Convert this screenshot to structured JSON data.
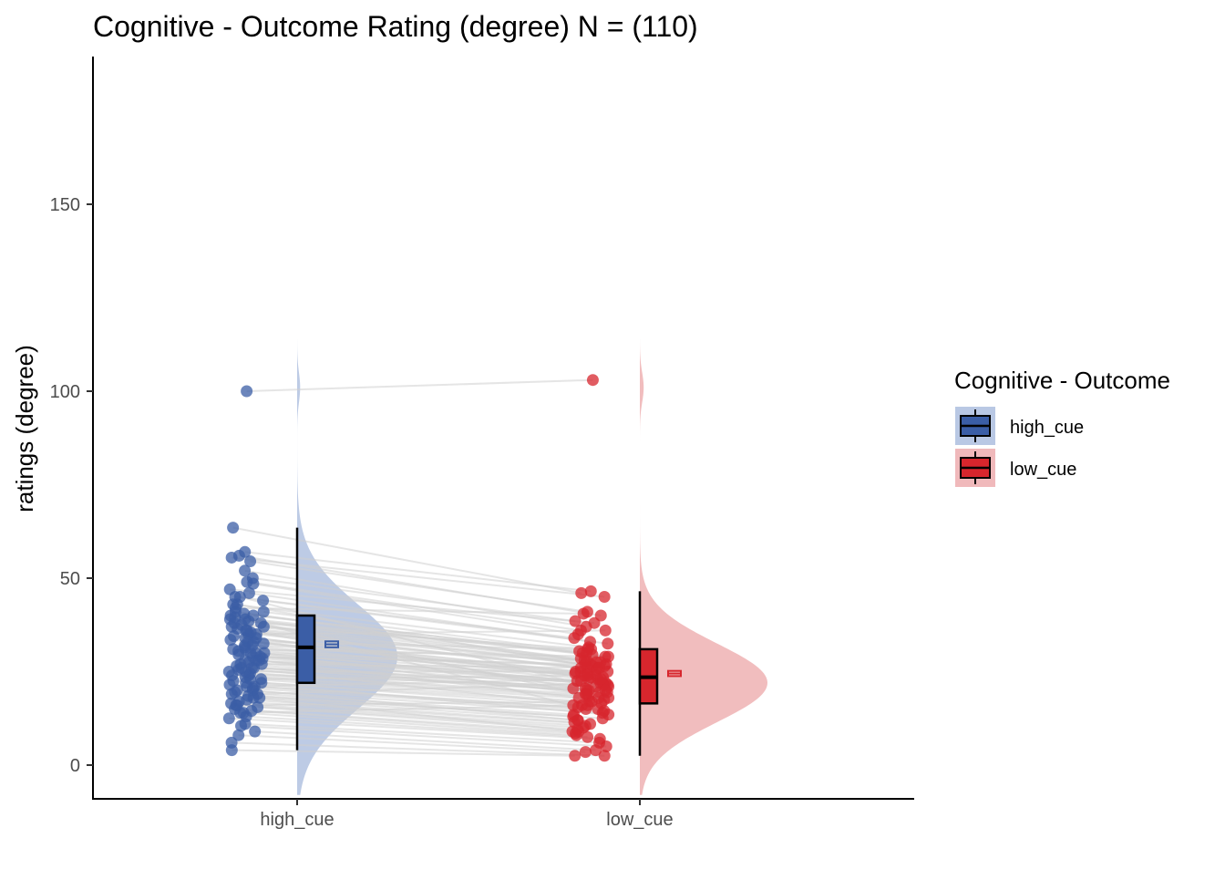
{
  "chart_data": {
    "type": "raincloud",
    "title": "Cognitive - Outcome Rating (degree) N = (110)",
    "xlabel": "",
    "ylabel": "ratings (degree)",
    "categories": [
      "high_cue",
      "low_cue"
    ],
    "ylim": [
      -8,
      185
    ],
    "yticks": [
      0,
      50,
      100,
      150
    ],
    "ytick_labels": [
      "0",
      "50",
      "100",
      "150"
    ],
    "grid": false,
    "legend": {
      "title": "Cognitive - Outcome",
      "position": "right",
      "entries": [
        "high_cue",
        "low_cue"
      ]
    },
    "colors": {
      "high_cue": "#3b5ea6",
      "low_cue": "#d7262d",
      "high_cue_fill": "#b9c8e4",
      "low_cue_fill": "#f0b9bb",
      "pair_line": "#cfcfcf"
    },
    "series": [
      {
        "name": "high_cue",
        "box": {
          "min": 4,
          "q1": 22,
          "median": 31.5,
          "q3": 40,
          "max": 63.5
        },
        "mean": 32.3,
        "mean_se": [
          31.5,
          33.1
        ],
        "density_peak": 29,
        "density_range": [
          -8,
          114
        ]
      },
      {
        "name": "low_cue",
        "box": {
          "min": 2.5,
          "q1": 16.5,
          "median": 23.5,
          "q3": 31,
          "max": 46.5
        },
        "mean": 24.5,
        "mean_se": [
          23.8,
          25.2
        ],
        "density_peak": 22,
        "density_range": [
          -8,
          114
        ]
      }
    ],
    "pairs": [
      [
        100.0,
        103.0
      ],
      [
        63.5,
        46.0
      ],
      [
        57.0,
        46.5
      ],
      [
        55.5,
        45.0
      ],
      [
        54.5,
        41.0
      ],
      [
        56.0,
        40.0
      ],
      [
        50.0,
        38.5
      ],
      [
        49.0,
        36.0
      ],
      [
        48.5,
        35.0
      ],
      [
        46.0,
        33.0
      ],
      [
        45.0,
        34.0
      ],
      [
        44.0,
        32.5
      ],
      [
        43.0,
        31.5
      ],
      [
        41.0,
        30.5
      ],
      [
        40.5,
        29.5
      ],
      [
        40.0,
        30.0
      ],
      [
        39.5,
        29.0
      ],
      [
        39.0,
        28.5
      ],
      [
        38.5,
        28.0
      ],
      [
        38.0,
        27.5
      ],
      [
        37.5,
        27.0
      ],
      [
        37.0,
        27.0
      ],
      [
        36.5,
        26.5
      ],
      [
        36.0,
        26.0
      ],
      [
        35.5,
        26.0
      ],
      [
        35.0,
        25.5
      ],
      [
        34.5,
        25.0
      ],
      [
        34.0,
        25.0
      ],
      [
        33.5,
        24.5
      ],
      [
        33.0,
        24.0
      ],
      [
        32.5,
        24.0
      ],
      [
        32.0,
        23.5
      ],
      [
        31.5,
        23.5
      ],
      [
        31.0,
        23.0
      ],
      [
        30.5,
        22.5
      ],
      [
        30.0,
        22.5
      ],
      [
        29.5,
        22.0
      ],
      [
        29.0,
        21.5
      ],
      [
        28.5,
        21.5
      ],
      [
        28.0,
        21.0
      ],
      [
        27.5,
        20.5
      ],
      [
        27.0,
        20.5
      ],
      [
        26.5,
        20.0
      ],
      [
        26.0,
        19.5
      ],
      [
        25.5,
        19.5
      ],
      [
        25.0,
        19.0
      ],
      [
        24.5,
        18.5
      ],
      [
        24.0,
        18.0
      ],
      [
        23.5,
        17.5
      ],
      [
        23.0,
        17.0
      ],
      [
        22.5,
        16.5
      ],
      [
        22.0,
        16.0
      ],
      [
        21.5,
        15.5
      ],
      [
        21.0,
        15.0
      ],
      [
        20.5,
        14.5
      ],
      [
        20.0,
        14.0
      ],
      [
        19.5,
        13.5
      ],
      [
        19.0,
        13.0
      ],
      [
        18.5,
        12.5
      ],
      [
        18.0,
        12.0
      ],
      [
        17.5,
        11.5
      ],
      [
        17.0,
        11.0
      ],
      [
        16.5,
        10.5
      ],
      [
        16.0,
        10.0
      ],
      [
        15.5,
        9.5
      ],
      [
        15.0,
        9.0
      ],
      [
        14.5,
        8.5
      ],
      [
        14.0,
        8.0
      ],
      [
        13.0,
        7.5
      ],
      [
        12.5,
        7.0
      ],
      [
        11.0,
        6.0
      ],
      [
        10.5,
        5.0
      ],
      [
        9.0,
        4.0
      ],
      [
        8.0,
        3.5
      ],
      [
        6.0,
        2.5
      ],
      [
        4.0,
        2.5
      ],
      [
        42.0,
        40.5
      ],
      [
        47.0,
        38.0
      ],
      [
        52.0,
        37.0
      ],
      [
        35.0,
        36.0
      ],
      [
        33.0,
        31.0
      ],
      [
        31.0,
        29.0
      ],
      [
        29.0,
        27.0
      ],
      [
        27.0,
        26.0
      ],
      [
        25.0,
        25.0
      ],
      [
        23.0,
        24.0
      ],
      [
        21.0,
        23.0
      ],
      [
        19.0,
        22.0
      ],
      [
        24.0,
        21.0
      ],
      [
        26.0,
        22.0
      ],
      [
        28.0,
        24.5
      ],
      [
        30.0,
        26.5
      ],
      [
        32.0,
        28.0
      ],
      [
        34.0,
        23.0
      ],
      [
        36.0,
        20.0
      ],
      [
        38.0,
        18.0
      ],
      [
        40.0,
        15.0
      ],
      [
        22.0,
        13.5
      ],
      [
        20.0,
        12.0
      ],
      [
        18.0,
        9.0
      ],
      [
        16.0,
        17.0
      ],
      [
        14.0,
        16.0
      ],
      [
        37.0,
        31.0
      ],
      [
        39.0,
        30.0
      ],
      [
        41.0,
        27.5
      ],
      [
        43.0,
        26.0
      ],
      [
        45.0,
        20.0
      ],
      [
        30.0,
        19.0
      ],
      [
        28.0,
        18.0
      ],
      [
        26.0,
        16.0
      ]
    ]
  }
}
